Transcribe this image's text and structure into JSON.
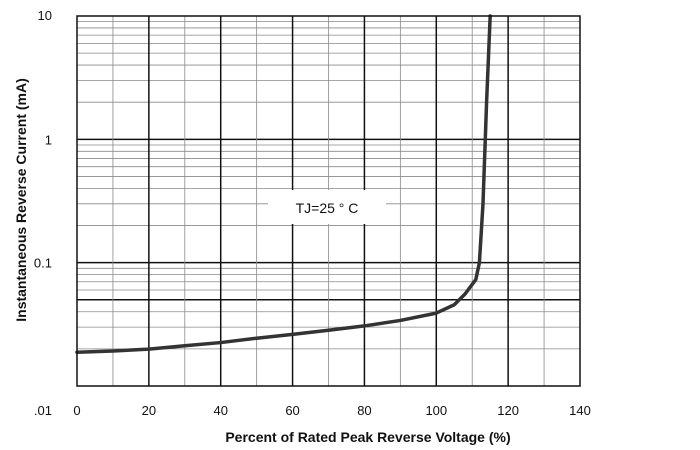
{
  "chart_data": {
    "type": "line",
    "title": "",
    "xlabel": "Percent of Rated Peak Reverse Voltage (%)",
    "ylabel": "Instantaneous Reverse Current (mA)",
    "x_scale": "linear",
    "y_scale": "log",
    "xlim": [
      0,
      140
    ],
    "ylim": [
      0.01,
      10
    ],
    "x_ticks": [
      0,
      20,
      40,
      60,
      80,
      100,
      120,
      140
    ],
    "x_tick_labels": [
      "0",
      "20",
      "40",
      "60",
      "80",
      "100",
      "120",
      "140"
    ],
    "y_ticks": [
      0.01,
      0.1,
      1,
      10
    ],
    "y_tick_labels": [
      ".01",
      "0.1",
      "1",
      "10"
    ],
    "grid": true,
    "annotation": "TJ=25 ° C",
    "series": [
      {
        "color": "#333333",
        "x": [
          0,
          10,
          20,
          30,
          40,
          50,
          60,
          70,
          80,
          90,
          100,
          105,
          108,
          111,
          112,
          113,
          114,
          115
        ],
        "y": [
          0.0188,
          0.0192,
          0.0199,
          0.0212,
          0.0225,
          0.0244,
          0.0262,
          0.0283,
          0.0307,
          0.034,
          0.039,
          0.0456,
          0.0557,
          0.073,
          0.1,
          0.3,
          2.0,
          10.0
        ]
      }
    ]
  }
}
